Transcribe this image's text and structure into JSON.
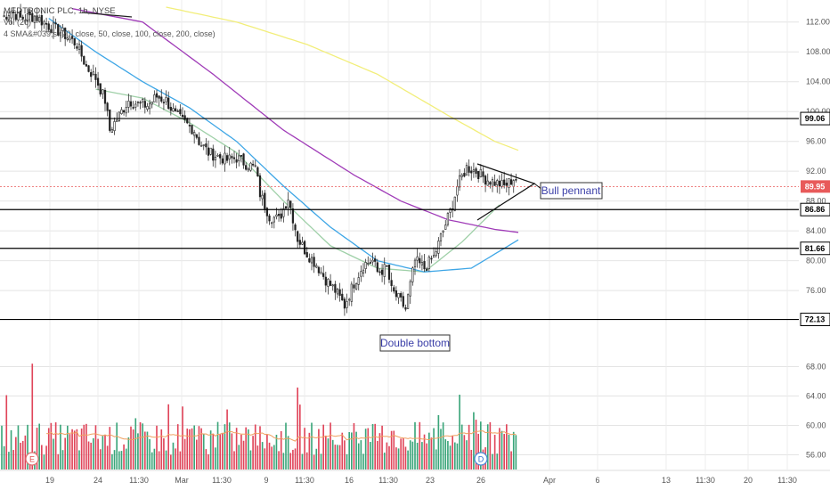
{
  "legend": {
    "title": "MEDTRONIC PLC, 1h, NYSE",
    "volume": "Vol (20)",
    "sma": "4 SMA&#039;s (20, close, 50, close, 100, close, 200, close)"
  },
  "colors": {
    "up": "#26a69a",
    "down": "#ef5350",
    "vol_up": "#3aa57a",
    "vol_down": "#e0455a",
    "sma20": "#9fd0a8",
    "sma50": "#3ea6e6",
    "sma100": "#a03cb8",
    "sma200": "#f2ee7a",
    "vol_ma": "#f0a060",
    "level": "#000000",
    "current": "#e85a5a",
    "annotation_text": "#3b3fa8"
  },
  "price_axis_ticks": [
    "112.00",
    "108.00",
    "104.00",
    "100.00",
    "96.00",
    "92.00",
    "88.00",
    "84.00",
    "80.00",
    "76.00"
  ],
  "volume_axis_ticks": [
    "68.00",
    "64.00",
    "60.00",
    "56.00"
  ],
  "x_axis_labels": [
    "19",
    "24",
    "11:30",
    "Mar",
    "11:30",
    "9",
    "11:30",
    "16",
    "11:30",
    "23",
    "26",
    "Apr",
    "6",
    "13",
    "11:30",
    "20",
    "11:30"
  ],
  "price_tags": [
    {
      "label": "99.06",
      "price": 99.06,
      "style": "level"
    },
    {
      "label": "89.95",
      "price": 89.95,
      "style": "current"
    },
    {
      "label": "86.86",
      "price": 86.86,
      "style": "level"
    },
    {
      "label": "81.66",
      "price": 81.66,
      "style": "level"
    },
    {
      "label": "72.13",
      "price": 72.13,
      "style": "level"
    }
  ],
  "annotations": {
    "bull_pennant": "Bull pennant",
    "double_bottom": "Double bottom"
  },
  "event_markers": [
    "E",
    "D"
  ],
  "chart_data": {
    "type": "candlestick",
    "title": "MEDTRONIC PLC, 1h, NYSE",
    "ylim": [
      71,
      114
    ],
    "horizontal_levels": [
      99.06,
      86.86,
      81.66,
      72.13
    ],
    "current_price": 89.95,
    "price_path": [
      [
        0,
        112.5
      ],
      [
        4,
        113.5
      ],
      [
        8,
        112.5
      ],
      [
        14,
        112.8
      ],
      [
        20,
        111.5
      ],
      [
        26,
        110.5
      ],
      [
        32,
        109
      ],
      [
        36,
        106
      ],
      [
        40,
        104.5
      ],
      [
        44,
        101.5
      ],
      [
        46,
        97.5
      ],
      [
        50,
        99.5
      ],
      [
        54,
        101.5
      ],
      [
        58,
        101
      ],
      [
        62,
        100.8
      ],
      [
        66,
        102
      ],
      [
        70,
        101.5
      ],
      [
        74,
        99.5
      ],
      [
        78,
        98.5
      ],
      [
        82,
        97.5
      ],
      [
        84,
        96
      ],
      [
        88,
        94.5
      ],
      [
        92,
        94
      ],
      [
        96,
        93.5
      ],
      [
        100,
        93.8
      ],
      [
        104,
        93
      ],
      [
        108,
        92.5
      ],
      [
        110,
        89
      ],
      [
        114,
        86
      ],
      [
        118,
        85.5
      ],
      [
        122,
        88.5
      ],
      [
        126,
        83
      ],
      [
        130,
        81
      ],
      [
        134,
        79.5
      ],
      [
        138,
        77.5
      ],
      [
        142,
        76
      ],
      [
        146,
        74
      ],
      [
        150,
        77
      ],
      [
        154,
        79.5
      ],
      [
        158,
        80
      ],
      [
        160,
        78.5
      ],
      [
        164,
        79
      ],
      [
        166,
        76
      ],
      [
        170,
        74.5
      ],
      [
        172,
        73.5
      ],
      [
        176,
        80
      ],
      [
        180,
        79
      ],
      [
        184,
        80.5
      ],
      [
        188,
        84
      ],
      [
        192,
        87.5
      ],
      [
        194,
        90
      ],
      [
        198,
        92.5
      ],
      [
        202,
        92
      ],
      [
        206,
        91
      ],
      [
        210,
        90.5
      ],
      [
        214,
        90
      ],
      [
        218,
        91
      ]
    ],
    "n_bars": 220,
    "sma_paths": {
      "sma20": [
        [
          40,
          103
        ],
        [
          60,
          101.8
        ],
        [
          80,
          98.5
        ],
        [
          100,
          94.5
        ],
        [
          120,
          88
        ],
        [
          140,
          82
        ],
        [
          160,
          79
        ],
        [
          180,
          78.5
        ],
        [
          196,
          82.5
        ],
        [
          212,
          87.5
        ]
      ],
      "sma50": [
        [
          20,
          112.5
        ],
        [
          40,
          108
        ],
        [
          60,
          104
        ],
        [
          80,
          100.5
        ],
        [
          100,
          96
        ],
        [
          120,
          90
        ],
        [
          140,
          84.5
        ],
        [
          160,
          80
        ],
        [
          180,
          78.5
        ],
        [
          200,
          79
        ],
        [
          220,
          82.8
        ]
      ],
      "sma100": [
        [
          30,
          113.8
        ],
        [
          60,
          112
        ],
        [
          90,
          105
        ],
        [
          120,
          97.5
        ],
        [
          150,
          91.5
        ],
        [
          170,
          88
        ],
        [
          190,
          85.5
        ],
        [
          210,
          84.2
        ],
        [
          220,
          83.8
        ]
      ],
      "sma200": [
        [
          70,
          114
        ],
        [
          100,
          112
        ],
        [
          130,
          109
        ],
        [
          160,
          105
        ],
        [
          190,
          99.5
        ],
        [
          210,
          96
        ],
        [
          220,
          94.8
        ]
      ]
    },
    "volume_ylim": [
      54,
      70
    ]
  }
}
